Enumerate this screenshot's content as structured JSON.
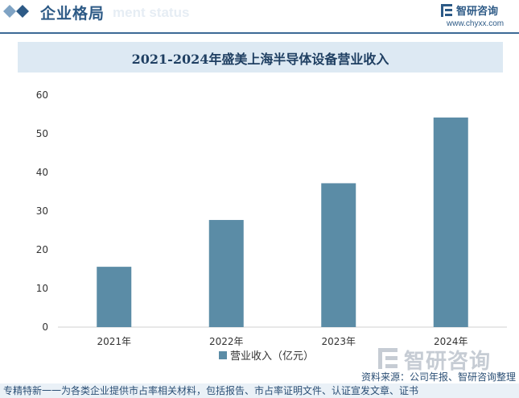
{
  "header": {
    "section_title": "企业格局",
    "ghost_text": "ment status",
    "brand_name": "智研咨询",
    "brand_url": "www.chyxx.com"
  },
  "chart_data": {
    "type": "bar",
    "title": "2021-2024年盛美上海半导体设备营业收入",
    "categories": [
      "2021年",
      "2022年",
      "2023年",
      "2024年"
    ],
    "series": [
      {
        "name": "营业收入（亿元）",
        "values": [
          15.6,
          27.7,
          37.2,
          54.2
        ]
      }
    ],
    "ylim": [
      0,
      60
    ],
    "yticks": [
      0,
      10,
      20,
      30,
      40,
      50,
      60
    ],
    "grid": false,
    "legend_position": "bottom",
    "bar_color": "#5b8ca6",
    "xlabel": "",
    "ylabel": ""
  },
  "watermark": {
    "text": "智研咨询"
  },
  "source": "资料来源：公司年报、智研咨询整理",
  "footer": "专精特新一一为各类企业提供市占率相关材料，包括报告、市占率证明文件、认证宣发文章、证书",
  "colors": {
    "primary": "#2d5a86",
    "bar": "#5b8ca6",
    "title_band": "#dde9f3"
  }
}
